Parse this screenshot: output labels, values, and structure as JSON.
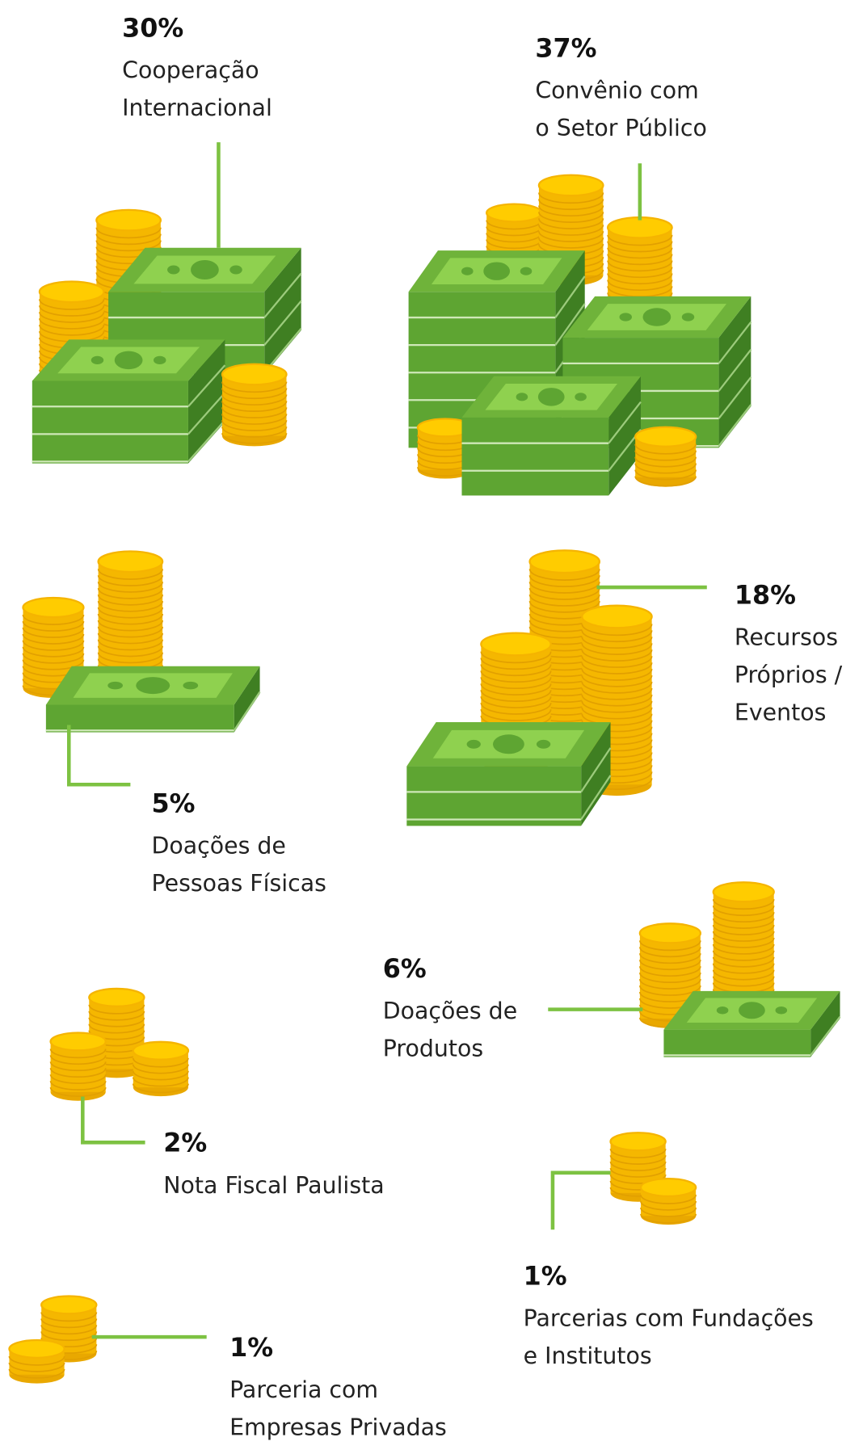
{
  "items": [
    {
      "percent": "30%",
      "lines": [
        "Cooperação",
        "Internacional"
      ]
    },
    {
      "percent": "37%",
      "lines": [
        "Convênio com",
        "o Setor Público"
      ]
    },
    {
      "percent": "5%",
      "lines": [
        "Doações de",
        "Pessoas Físicas"
      ]
    },
    {
      "percent": "18%",
      "lines": [
        "Recursos",
        "Próprios /",
        "Eventos"
      ]
    },
    {
      "percent": "6%",
      "lines": [
        "Doações de",
        "Produtos"
      ]
    },
    {
      "percent": "2%",
      "lines": [
        "Nota Fiscal Paulista"
      ]
    },
    {
      "percent": "1%",
      "lines": [
        "Parcerias com Fundações",
        "e Institutos"
      ]
    },
    {
      "percent": "1%",
      "lines": [
        "Parceria com",
        "Empresas Privadas"
      ]
    }
  ]
}
